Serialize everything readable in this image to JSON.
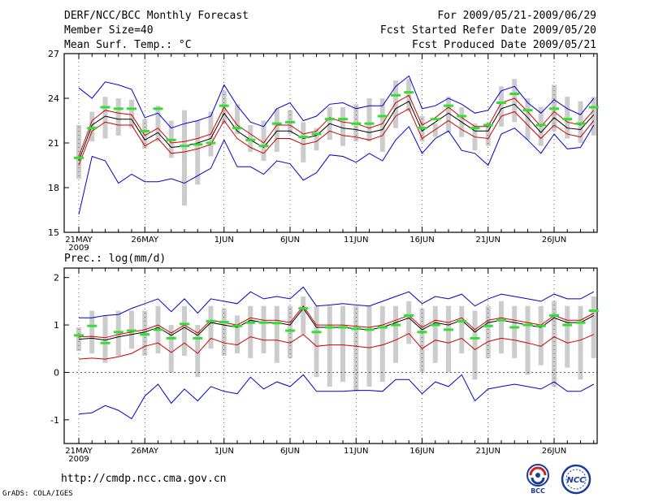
{
  "header": {
    "title": "DERF/NCC/BCC Monthly Forecast",
    "member_size": "Member Size=40",
    "period": "For 2009/05/21-2009/06/29",
    "started": "Fcst Started Refer Date 2009/05/20",
    "produced": "Fcst Produced Date 2009/05/21"
  },
  "footer": {
    "url": "http://cmdp.ncc.cma.gov.cn",
    "credit": "GrADS: COLA/IGES",
    "logo_left": "BCC",
    "logo_right": "NCC"
  },
  "colors": {
    "ensemble_mean": "#000000",
    "spread": "#cc0000",
    "extreme": "#0000cc",
    "box": "#cccccc",
    "observed": "#33dd33"
  },
  "chart_data": [
    {
      "type": "line",
      "name": "temperature",
      "title": "Mean Surf. Temp.: °C",
      "xlabel": "",
      "ylabel": "",
      "x": [
        "05-21",
        "05-22",
        "05-23",
        "05-24",
        "05-25",
        "05-26",
        "05-27",
        "05-28",
        "05-29",
        "05-30",
        "05-31",
        "06-01",
        "06-02",
        "06-03",
        "06-04",
        "06-05",
        "06-06",
        "06-07",
        "06-08",
        "06-09",
        "06-10",
        "06-11",
        "06-12",
        "06-13",
        "06-14",
        "06-15",
        "06-16",
        "06-17",
        "06-18",
        "06-19",
        "06-20",
        "06-21",
        "06-22",
        "06-23",
        "06-24",
        "06-25",
        "06-26",
        "06-27",
        "06-28",
        "06-29"
      ],
      "x_tick_labels": [
        {
          "index": 0,
          "label": "21MAY",
          "sub": "2009"
        },
        {
          "index": 5,
          "label": "26MAY"
        },
        {
          "index": 11,
          "label": "1JUN"
        },
        {
          "index": 16,
          "label": "6JUN"
        },
        {
          "index": 21,
          "label": "11JUN"
        },
        {
          "index": 26,
          "label": "16JUN"
        },
        {
          "index": 31,
          "label": "21JUN"
        },
        {
          "index": 36,
          "label": "26JUN"
        }
      ],
      "ylim": [
        15,
        27
      ],
      "yticks": [
        15,
        18,
        21,
        24,
        27
      ],
      "series": [
        {
          "name": "ensemble mean",
          "role": "mean",
          "values": [
            19.8,
            22.2,
            22.8,
            22.6,
            22.6,
            21.2,
            21.7,
            20.7,
            20.8,
            21.0,
            21.3,
            23.0,
            21.8,
            21.2,
            20.7,
            21.8,
            21.8,
            21.3,
            21.5,
            22.3,
            22.0,
            21.9,
            21.7,
            21.9,
            23.3,
            23.8,
            21.8,
            22.4,
            23.0,
            22.4,
            21.8,
            21.8,
            23.3,
            23.6,
            22.7,
            21.7,
            22.7,
            22.0,
            21.9,
            22.9
          ]
        },
        {
          "name": "mean + spread",
          "role": "upper",
          "values": [
            20.1,
            22.5,
            23.2,
            23.0,
            22.9,
            21.5,
            22.0,
            21.0,
            21.1,
            21.3,
            21.6,
            23.4,
            22.2,
            21.6,
            21.0,
            22.2,
            22.2,
            21.6,
            21.8,
            22.7,
            22.4,
            22.3,
            22.0,
            22.3,
            23.7,
            24.2,
            22.2,
            22.7,
            23.4,
            22.7,
            22.1,
            22.1,
            23.7,
            24.0,
            23.1,
            22.1,
            23.1,
            22.4,
            22.2,
            23.2
          ]
        },
        {
          "name": "mean - spread",
          "role": "lower",
          "values": [
            19.5,
            21.8,
            22.4,
            22.2,
            22.2,
            20.8,
            21.3,
            20.3,
            20.4,
            20.6,
            20.9,
            22.5,
            21.3,
            20.7,
            20.3,
            21.3,
            21.3,
            20.9,
            21.1,
            21.8,
            21.5,
            21.4,
            21.2,
            21.5,
            22.8,
            23.3,
            21.3,
            21.9,
            22.5,
            21.9,
            21.4,
            21.3,
            22.8,
            23.1,
            22.2,
            21.3,
            22.2,
            21.6,
            21.4,
            22.5
          ]
        },
        {
          "name": "ensemble max",
          "role": "max",
          "values": [
            24.7,
            24.0,
            25.1,
            24.9,
            24.6,
            22.7,
            23.0,
            22.0,
            22.3,
            22.5,
            22.8,
            24.9,
            23.5,
            22.4,
            22.1,
            23.3,
            23.7,
            22.5,
            22.8,
            23.6,
            23.7,
            23.3,
            23.5,
            23.5,
            24.8,
            25.5,
            23.3,
            23.5,
            24.0,
            23.6,
            23.0,
            23.2,
            24.5,
            24.8,
            23.7,
            23.0,
            23.9,
            23.3,
            22.9,
            24.0
          ]
        },
        {
          "name": "ensemble min",
          "role": "min",
          "values": [
            16.2,
            20.1,
            19.8,
            18.3,
            18.9,
            18.4,
            18.4,
            18.6,
            18.3,
            18.8,
            19.3,
            21.2,
            19.4,
            19.4,
            18.9,
            19.8,
            19.6,
            18.5,
            19.0,
            20.2,
            20.1,
            19.7,
            20.3,
            19.8,
            21.2,
            22.1,
            20.3,
            21.3,
            21.8,
            20.5,
            20.3,
            19.5,
            21.6,
            22.0,
            21.2,
            20.3,
            21.6,
            20.6,
            20.7,
            22.2
          ]
        }
      ],
      "boxes": {
        "low": [
          18.6,
          21.1,
          21.3,
          21.5,
          22.0,
          20.6,
          21.1,
          20.0,
          16.8,
          18.2,
          20.1,
          22.3,
          21.6,
          20.4,
          19.8,
          20.4,
          21.6,
          19.7,
          20.5,
          21.2,
          20.8,
          21.1,
          21.1,
          20.4,
          22.0,
          23.1,
          21.1,
          21.4,
          21.7,
          21.4,
          20.5,
          20.8,
          22.1,
          22.4,
          21.2,
          20.8,
          21.8,
          21.3,
          21.0,
          21.5
        ],
        "high": [
          22.2,
          23.1,
          24.1,
          24.0,
          23.9,
          22.6,
          23.5,
          22.5,
          23.2,
          22.5,
          23.1,
          24.5,
          23.6,
          22.2,
          22.5,
          23.3,
          23.2,
          22.4,
          22.0,
          23.4,
          23.4,
          23.6,
          24.0,
          24.0,
          25.2,
          25.3,
          22.8,
          22.3,
          24.1,
          23.4,
          22.3,
          22.4,
          24.8,
          25.3,
          24.0,
          23.4,
          24.9,
          24.1,
          23.8,
          24.1
        ]
      },
      "observed": [
        20.0,
        22.0,
        23.4,
        23.3,
        23.3,
        21.8,
        23.3,
        21.2,
        20.8,
        20.9,
        21.0,
        23.5,
        22.0,
        21.2,
        20.8,
        22.3,
        22.4,
        21.4,
        21.6,
        22.6,
        22.6,
        22.3,
        22.3,
        22.8,
        24.2,
        24.4,
        22.0,
        22.6,
        23.5,
        22.8,
        22.0,
        22.2,
        23.7,
        24.3,
        23.2,
        22.2,
        23.3,
        22.6,
        22.3,
        23.4
      ]
    },
    {
      "type": "line",
      "name": "precipitation",
      "title": "Prec.: log(mm/d)",
      "xlabel": "",
      "ylabel": "",
      "x": [
        "05-21",
        "05-22",
        "05-23",
        "05-24",
        "05-25",
        "05-26",
        "05-27",
        "05-28",
        "05-29",
        "05-30",
        "05-31",
        "06-01",
        "06-02",
        "06-03",
        "06-04",
        "06-05",
        "06-06",
        "06-07",
        "06-08",
        "06-09",
        "06-10",
        "06-11",
        "06-12",
        "06-13",
        "06-14",
        "06-15",
        "06-16",
        "06-17",
        "06-18",
        "06-19",
        "06-20",
        "06-21",
        "06-22",
        "06-23",
        "06-24",
        "06-25",
        "06-26",
        "06-27",
        "06-28",
        "06-29"
      ],
      "x_tick_labels": [
        {
          "index": 0,
          "label": "21MAY",
          "sub": "2009"
        },
        {
          "index": 5,
          "label": "26MAY"
        },
        {
          "index": 11,
          "label": "1JUN"
        },
        {
          "index": 16,
          "label": "6JUN"
        },
        {
          "index": 21,
          "label": "11JUN"
        },
        {
          "index": 26,
          "label": "16JUN"
        },
        {
          "index": 31,
          "label": "21JUN"
        },
        {
          "index": 36,
          "label": "26JUN"
        }
      ],
      "ylim": [
        -1.5,
        2.2
      ],
      "yticks": [
        -1,
        0,
        1,
        2
      ],
      "series": [
        {
          "name": "ensemble mean",
          "role": "mean",
          "values": [
            0.7,
            0.72,
            0.68,
            0.75,
            0.8,
            0.85,
            0.95,
            0.78,
            0.95,
            0.78,
            1.05,
            1.0,
            0.95,
            1.1,
            1.05,
            1.05,
            1.0,
            1.35,
            0.95,
            0.95,
            0.95,
            0.92,
            0.9,
            0.95,
            1.05,
            1.15,
            0.9,
            1.05,
            1.0,
            1.1,
            0.85,
            1.05,
            1.1,
            1.05,
            1.0,
            0.95,
            1.15,
            1.05,
            1.05,
            1.2
          ]
        },
        {
          "name": "mean + spread",
          "role": "upper",
          "values": [
            0.75,
            0.76,
            0.73,
            0.8,
            0.85,
            0.9,
            1.0,
            0.83,
            1.0,
            0.83,
            1.1,
            1.05,
            1.0,
            1.15,
            1.1,
            1.1,
            1.05,
            1.4,
            1.0,
            1.0,
            1.0,
            0.97,
            0.95,
            1.0,
            1.1,
            1.2,
            0.95,
            1.1,
            1.05,
            1.15,
            0.9,
            1.1,
            1.15,
            1.1,
            1.05,
            1.0,
            1.2,
            1.1,
            1.1,
            1.25
          ]
        },
        {
          "name": "lower spread",
          "role": "lower",
          "values": [
            0.28,
            0.3,
            0.28,
            0.33,
            0.4,
            0.55,
            0.62,
            0.42,
            0.62,
            0.4,
            0.72,
            0.62,
            0.58,
            0.75,
            0.68,
            0.68,
            0.62,
            0.8,
            0.55,
            0.58,
            0.58,
            0.55,
            0.52,
            0.58,
            0.68,
            0.82,
            0.5,
            0.68,
            0.62,
            0.72,
            0.48,
            0.65,
            0.72,
            0.68,
            0.62,
            0.55,
            0.75,
            0.62,
            0.68,
            0.8
          ]
        },
        {
          "name": "ensemble max",
          "role": "max",
          "values": [
            1.15,
            1.15,
            1.2,
            1.22,
            1.35,
            1.45,
            1.55,
            1.28,
            1.55,
            1.25,
            1.55,
            1.5,
            1.45,
            1.7,
            1.55,
            1.6,
            1.55,
            1.8,
            1.4,
            1.42,
            1.45,
            1.42,
            1.4,
            1.5,
            1.6,
            1.7,
            1.45,
            1.6,
            1.55,
            1.65,
            1.4,
            1.55,
            1.65,
            1.6,
            1.55,
            1.5,
            1.65,
            1.55,
            1.55,
            1.7
          ]
        },
        {
          "name": "ensemble min",
          "role": "min",
          "values": [
            -0.88,
            -0.85,
            -0.7,
            -0.8,
            -0.98,
            -0.5,
            -0.25,
            -0.65,
            -0.35,
            -0.6,
            -0.3,
            -0.4,
            -0.45,
            -0.1,
            -0.35,
            -0.2,
            -0.3,
            -0.05,
            -0.4,
            -0.4,
            -0.4,
            -0.38,
            -0.38,
            -0.4,
            -0.15,
            -0.15,
            -0.45,
            -0.2,
            -0.3,
            -0.05,
            -0.6,
            -0.35,
            -0.3,
            -0.25,
            -0.3,
            -0.35,
            -0.2,
            -0.4,
            -0.4,
            -0.25
          ]
        },
        {
          "name": "observed / reference",
          "role": "observed",
          "values": [
            0.78,
            0.98,
            0.62,
            0.85,
            0.88,
            0.8,
            0.9,
            0.72,
            1.02,
            0.72,
            1.08,
            1.06,
            0.98,
            1.05,
            1.05,
            1.04,
            0.88,
            1.35,
            0.85,
            0.95,
            0.95,
            0.92,
            0.9,
            0.95,
            1.0,
            1.2,
            0.85,
            1.0,
            0.9,
            1.08,
            0.72,
            0.98,
            1.1,
            0.95,
            1.0,
            0.98,
            1.2,
            1.0,
            1.05,
            1.3
          ]
        }
      ],
      "boxes": {
        "low": [
          0.45,
          0.4,
          0.2,
          0.35,
          0.5,
          0.35,
          0.4,
          0.0,
          0.35,
          -0.1,
          0.5,
          0.35,
          0.4,
          0.3,
          0.4,
          0.2,
          0.3,
          0.8,
          -0.1,
          -0.3,
          -0.2,
          -0.4,
          -0.3,
          -0.2,
          0.2,
          0.6,
          0.0,
          0.2,
          0.0,
          0.4,
          -0.15,
          0.3,
          0.4,
          0.3,
          -0.05,
          0.15,
          -0.3,
          0.1,
          -0.15,
          0.3
        ],
        "high": [
          0.95,
          1.3,
          1.2,
          1.3,
          1.3,
          1.3,
          1.4,
          1.0,
          1.4,
          1.0,
          1.4,
          1.35,
          1.2,
          1.4,
          1.4,
          1.4,
          1.4,
          1.6,
          1.4,
          1.4,
          1.4,
          1.4,
          1.4,
          1.4,
          1.4,
          1.5,
          1.35,
          1.4,
          1.4,
          1.4,
          1.3,
          1.4,
          1.5,
          1.4,
          1.4,
          1.4,
          1.5,
          1.4,
          1.4,
          1.6
        ]
      }
    }
  ]
}
